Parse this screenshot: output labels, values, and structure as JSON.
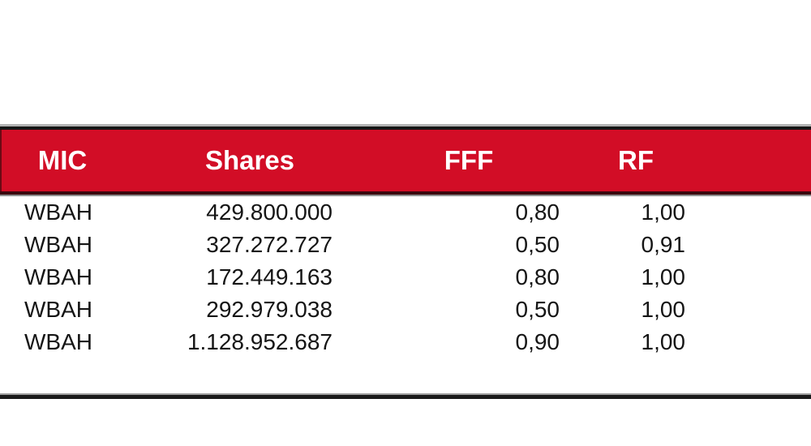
{
  "table": {
    "header": {
      "mic": "MIC",
      "shares": "Shares",
      "fff": "FFF",
      "rf": "RF"
    },
    "rows": [
      {
        "mic": "WBAH",
        "shares": "429.800.000",
        "fff": "0,80",
        "rf": "1,00"
      },
      {
        "mic": "WBAH",
        "shares": "327.272.727",
        "fff": "0,50",
        "rf": "0,91"
      },
      {
        "mic": "WBAH",
        "shares": "172.449.163",
        "fff": "0,80",
        "rf": "1,00"
      },
      {
        "mic": "WBAH",
        "shares": "292.979.038",
        "fff": "0,50",
        "rf": "1,00"
      },
      {
        "mic": "WBAH",
        "shares": "1.128.952.687",
        "fff": "0,90",
        "rf": "1,00"
      }
    ]
  },
  "colors": {
    "page_bg": "#ffffff",
    "header_bg": "#d20d26",
    "header_text": "#ffffff",
    "header_underline": "#3a070e",
    "body_text": "#151515",
    "border_black": "#161616",
    "border_gray": "#b3b3b3"
  }
}
